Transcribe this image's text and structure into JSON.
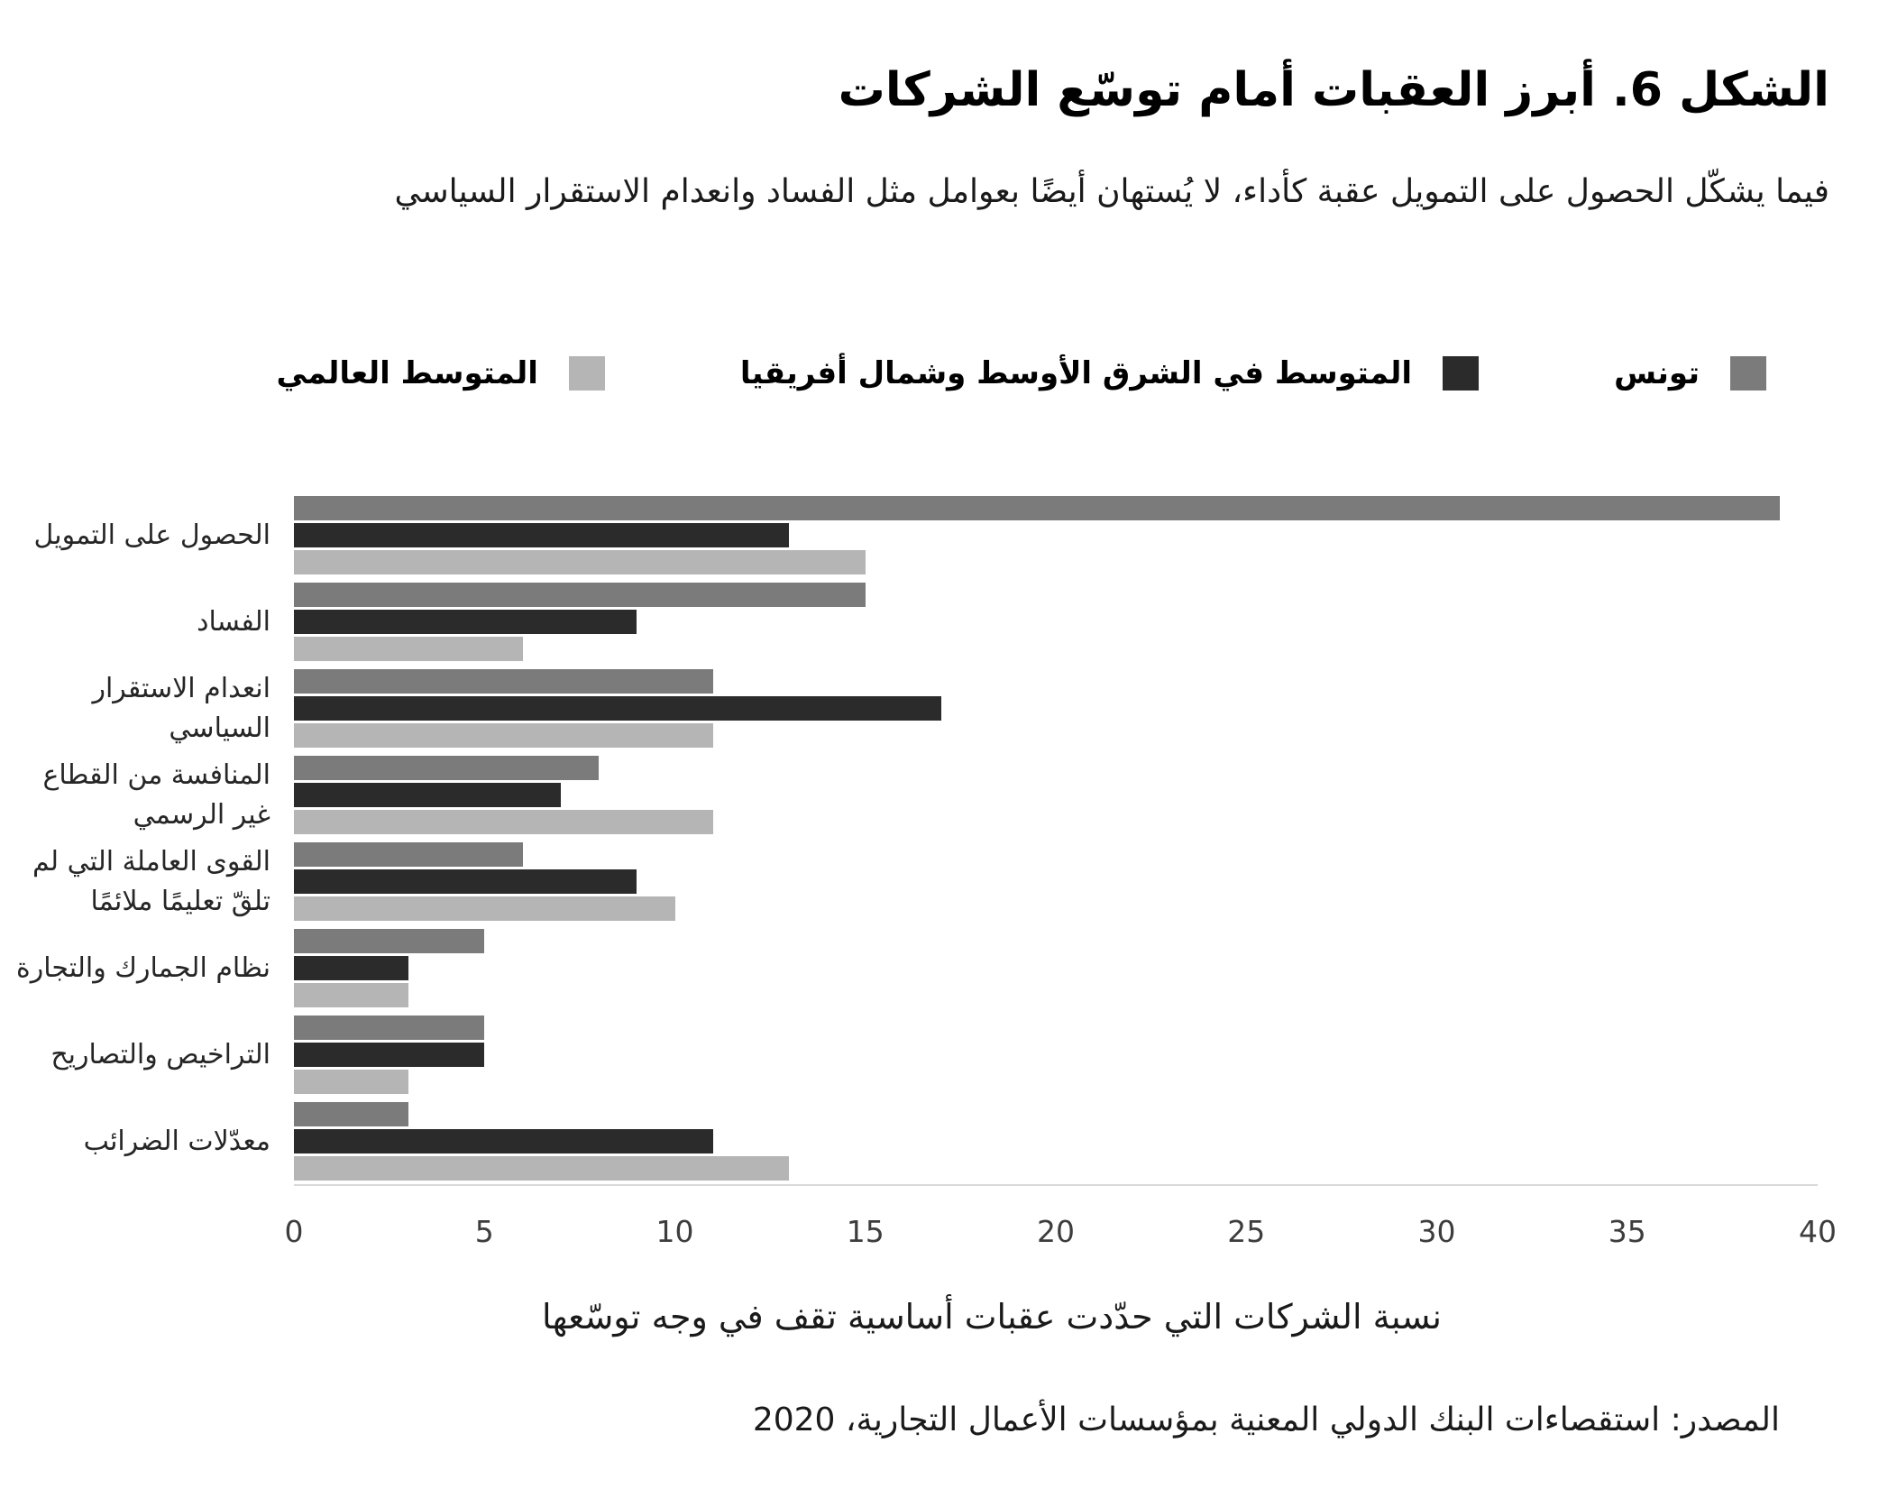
{
  "title": "الشكل 6. أبرز العقبات أمام توسّع الشركات",
  "subtitle": "فيما يشكّل الحصول على التمويل عقبة كأداء، لا يُستهان أيضًا بعوامل مثل الفساد وانعدام الاستقرار السياسي",
  "legend": [
    {
      "id": "tunisia",
      "label": "تونس",
      "color": "#7b7b7b"
    },
    {
      "id": "mena-average",
      "label": "المتوسط في الشرق الأوسط وشمال أفريقيا",
      "color": "#2b2b2b"
    },
    {
      "id": "world-average",
      "label": "المتوسط العالمي",
      "color": "#b5b5b5"
    }
  ],
  "chart_data": {
    "type": "bar",
    "orientation": "horizontal",
    "categories": [
      "الحصول على التمويل",
      "الفساد",
      "انعدام الاستقرار\nالسياسي",
      "المنافسة من القطاع\nغير الرسمي",
      "القوى العاملة التي لم\nتلقّ تعليمًا ملائمًا",
      "نظام الجمارك والتجارة",
      "التراخيص والتصاريح",
      "معدّلات الضرائب"
    ],
    "series": [
      {
        "id": "tunisia",
        "name": "تونس",
        "color": "#7b7b7b",
        "values": [
          39,
          15,
          11,
          8,
          6,
          5,
          5,
          3
        ]
      },
      {
        "id": "mena-average",
        "name": "المتوسط في الشرق الأوسط وشمال أفريقيا",
        "color": "#2b2b2b",
        "values": [
          13,
          9,
          17,
          7,
          9,
          3,
          5,
          11
        ]
      },
      {
        "id": "world-average",
        "name": "المتوسط العالمي",
        "color": "#b5b5b5",
        "values": [
          15,
          6,
          11,
          11,
          10,
          3,
          3,
          13
        ]
      }
    ],
    "xlabel": "نسبة الشركات التي حدّدت عقبات أساسية تقف في وجه توسّعها",
    "xlim": [
      0,
      40
    ],
    "xticks": [
      0,
      5,
      10,
      15,
      20,
      25,
      30,
      35,
      40
    ],
    "grid": false,
    "legend_position": "top",
    "axis_line_color": "#d9d9d9"
  },
  "source": "المصدر: استقصاءات البنك الدولي المعنية بمؤسسات الأعمال التجارية، 2020"
}
